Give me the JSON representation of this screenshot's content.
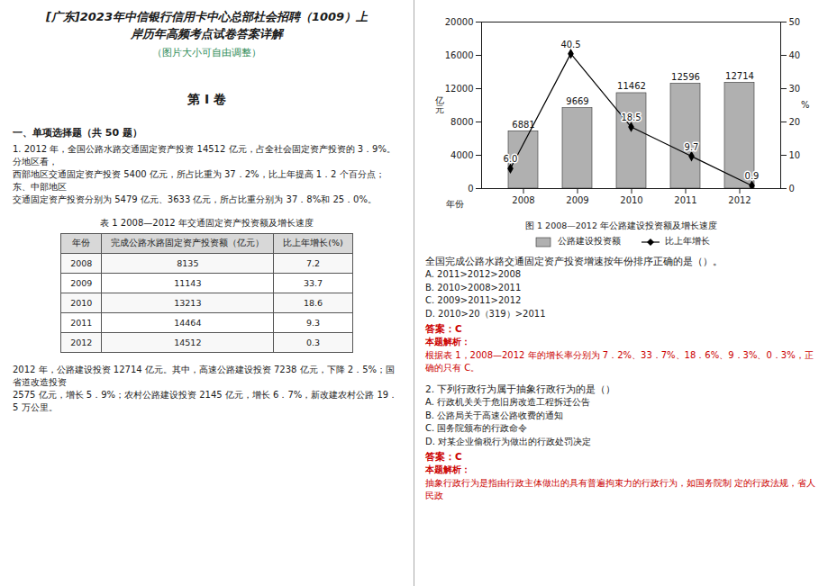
{
  "chart_data": {
    "type": "bar",
    "title": "图 1  2008—2012 年公路建设投资额及增长速度",
    "x_label": "年份",
    "y_label": "亿\n元",
    "y2_label": "%",
    "categories": [
      "2008",
      "2009",
      "2010",
      "2011",
      "2012"
    ],
    "series": [
      {
        "name": "公路建设投资额",
        "type": "bar",
        "color": "#b0b0b0",
        "values": [
          6881,
          9669,
          11462,
          12596,
          12714
        ]
      },
      {
        "name": "比上年增长",
        "type": "line",
        "axis": "y2",
        "color": "black",
        "marker": "diamond",
        "values": [
          6.0,
          40.5,
          18.5,
          9.7,
          0.9
        ],
        "value_labels": [
          "6.0",
          "40.5",
          "18.5",
          "9.7",
          "0.9"
        ]
      }
    ],
    "ylim": [
      0,
      20000
    ],
    "yticks": [
      0,
      4000,
      8000,
      12000,
      16000,
      20000
    ],
    "y2lim": [
      0,
      50
    ],
    "y2ticks": [
      0,
      10,
      20,
      30,
      40,
      50
    ],
    "data_labels": true,
    "grid": false,
    "table": {
      "title": "表 1  2008—2012 年交通固定资产投资额及增长速度",
      "columns": [
        "年份",
        "完成公路水路固定资产投资额（亿元）",
        "比上年增长(%)"
      ],
      "rows": [
        [
          "2008",
          "8135",
          "7.2"
        ],
        [
          "2009",
          "11143",
          "33.7"
        ],
        [
          "2010",
          "13213",
          "18.6"
        ],
        [
          "2011",
          "14464",
          "9.3"
        ],
        [
          "2012",
          "14512",
          "0.3"
        ]
      ]
    },
    "annotations": [
      "[广东]2023年中信银行信用卡中心总部社会招聘（1009）上",
      "岸历年高频考点试卷答案详解",
      {
        "text": "（图片大小可自由调整）",
        "color": "#2e8b57"
      },
      "第 Ⅰ 卷",
      "一、单项选择题（共 50 题）",
      "1. 2012 年，全国公路水路交通固定资产投资 14512 亿元，占全社会固定资产投资的 3．9%。分地区看，",
      "西部地区交通固定资产投资 5400 亿元，所占比重为 37．2%，比上年提高 1．2 个百分点；东、中部地区",
      "交通固定资产投资分别为 5479 亿元、3633 亿元，所占比重分别为 37．8%和 25．0%。",
      "2012 年，公路建设投资 12714 亿元。其中，高速公路建设投资 7238 亿元，下降 2．5%；国省道改造投资",
      "2575 亿元，增长 5．9%；农村公路建设投资 2145 亿元，增长 6．7%，新改建农村公路 19．5 万公里。",
      "全国完成公路水路交通固定资产投资增速按年份排序正确的是（）。",
      "A. 2011>2012>2008",
      "B. 2010>2008>2011",
      "C. 2009>2011>2012",
      "D. 2010>20（319）>2011",
      {
        "text": "答案：C",
        "color": "#cc0000"
      },
      {
        "text": "本题解析：",
        "color": "#cc0000"
      },
      {
        "text": "根据表 1，2008—2012 年的增长率分别为 7．2%、33．7%、18．6%、9．3%、0．3%，正确的只有 C。",
        "color": "#cc0000"
      },
      "2. 下列行政行为属于抽象行政行为的是（）",
      "A. 行政机关关于危旧房改造工程拆迁公告",
      "B. 公路局关于高速公路收费的通知",
      "C. 国务院颁布的行政命令",
      "D. 对某企业偷税行为做出的行政处罚决定",
      {
        "text": "答案：C",
        "color": "#cc0000"
      },
      {
        "text": "本题解析：",
        "color": "#cc0000"
      },
      {
        "text": "抽象行政行为是指由行政主体做出的具有普遍拘束力的行政行为，如国务院制 定的行政法规，省人民政",
        "color": "#cc0000"
      }
    ]
  }
}
